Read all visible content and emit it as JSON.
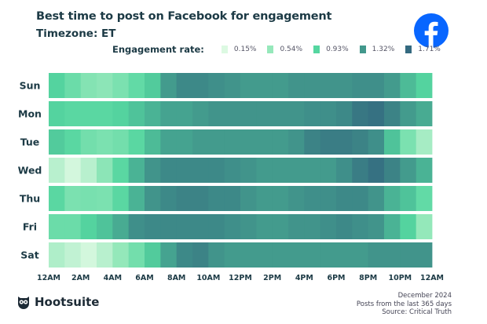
{
  "title": "Best time to post on Facebook for engagement",
  "subtitle": "Timezone: ET",
  "brand_logo": "Hootsuite",
  "facebook_icon": "facebook-logo-icon",
  "footer": [
    "December 2024",
    "Posts from the last 365 days",
    "Source: Critical Truth"
  ],
  "chart_data": {
    "type": "heatmap",
    "title": "Best time to post on Facebook for engagement",
    "legend": {
      "title": "Engagement rate:",
      "placement": "top",
      "stops": [
        {
          "label": "0.15%",
          "value": 0.15,
          "color": "#dcf9e2"
        },
        {
          "label": "0.54%",
          "value": 0.54,
          "color": "#96e8bb"
        },
        {
          "label": "0.93%",
          "value": 0.93,
          "color": "#55d6a0"
        },
        {
          "label": "1.32%",
          "value": 1.32,
          "color": "#42988c"
        },
        {
          "label": "1.71%",
          "value": 1.71,
          "color": "#346a80"
        }
      ]
    },
    "x_tick_labels": [
      "12AM",
      "2AM",
      "4AM",
      "6AM",
      "8AM",
      "10AM",
      "12PM",
      "2PM",
      "4PM",
      "6PM",
      "8PM",
      "10PM",
      "12AM"
    ],
    "rows": [
      "Sun",
      "Mon",
      "Tue",
      "Wed",
      "Thu",
      "Fri",
      "Sat"
    ],
    "unit": "%",
    "values": [
      [
        0.95,
        0.8,
        0.65,
        0.6,
        0.7,
        0.85,
        1.0,
        1.3,
        1.45,
        1.45,
        1.4,
        1.35,
        1.3,
        1.3,
        1.3,
        1.35,
        1.35,
        1.35,
        1.35,
        1.4,
        1.4,
        1.3,
        1.1,
        0.95
      ],
      [
        0.95,
        0.9,
        0.9,
        0.9,
        0.95,
        1.05,
        1.15,
        1.25,
        1.25,
        1.3,
        1.35,
        1.35,
        1.35,
        1.35,
        1.35,
        1.35,
        1.4,
        1.4,
        1.45,
        1.6,
        1.65,
        1.5,
        1.3,
        1.2
      ],
      [
        1.0,
        0.9,
        0.75,
        0.7,
        0.75,
        0.9,
        1.1,
        1.25,
        1.25,
        1.3,
        1.3,
        1.3,
        1.3,
        1.3,
        1.3,
        1.35,
        1.5,
        1.55,
        1.55,
        1.5,
        1.4,
        1.05,
        0.7,
        0.45
      ],
      [
        0.35,
        0.2,
        0.35,
        0.6,
        0.9,
        1.15,
        1.35,
        1.45,
        1.45,
        1.45,
        1.45,
        1.4,
        1.35,
        1.3,
        1.3,
        1.3,
        1.3,
        1.3,
        1.4,
        1.55,
        1.65,
        1.5,
        1.3,
        1.15
      ],
      [
        0.9,
        0.7,
        0.72,
        0.7,
        0.9,
        1.15,
        1.35,
        1.45,
        1.5,
        1.5,
        1.45,
        1.45,
        1.35,
        1.3,
        1.3,
        1.35,
        1.4,
        1.4,
        1.45,
        1.45,
        1.35,
        1.15,
        1.05,
        0.85
      ],
      [
        0.8,
        0.8,
        0.95,
        1.05,
        1.2,
        1.4,
        1.45,
        1.45,
        1.45,
        1.45,
        1.45,
        1.4,
        1.35,
        1.3,
        1.3,
        1.35,
        1.35,
        1.4,
        1.45,
        1.4,
        1.35,
        1.15,
        0.95,
        0.55
      ],
      [
        0.4,
        0.3,
        0.2,
        0.35,
        0.55,
        0.75,
        1.0,
        1.25,
        1.45,
        1.5,
        1.35,
        1.3,
        1.3,
        1.3,
        1.3,
        1.3,
        1.3,
        1.3,
        1.3,
        1.3,
        1.35,
        1.35,
        1.35,
        1.35
      ]
    ]
  }
}
